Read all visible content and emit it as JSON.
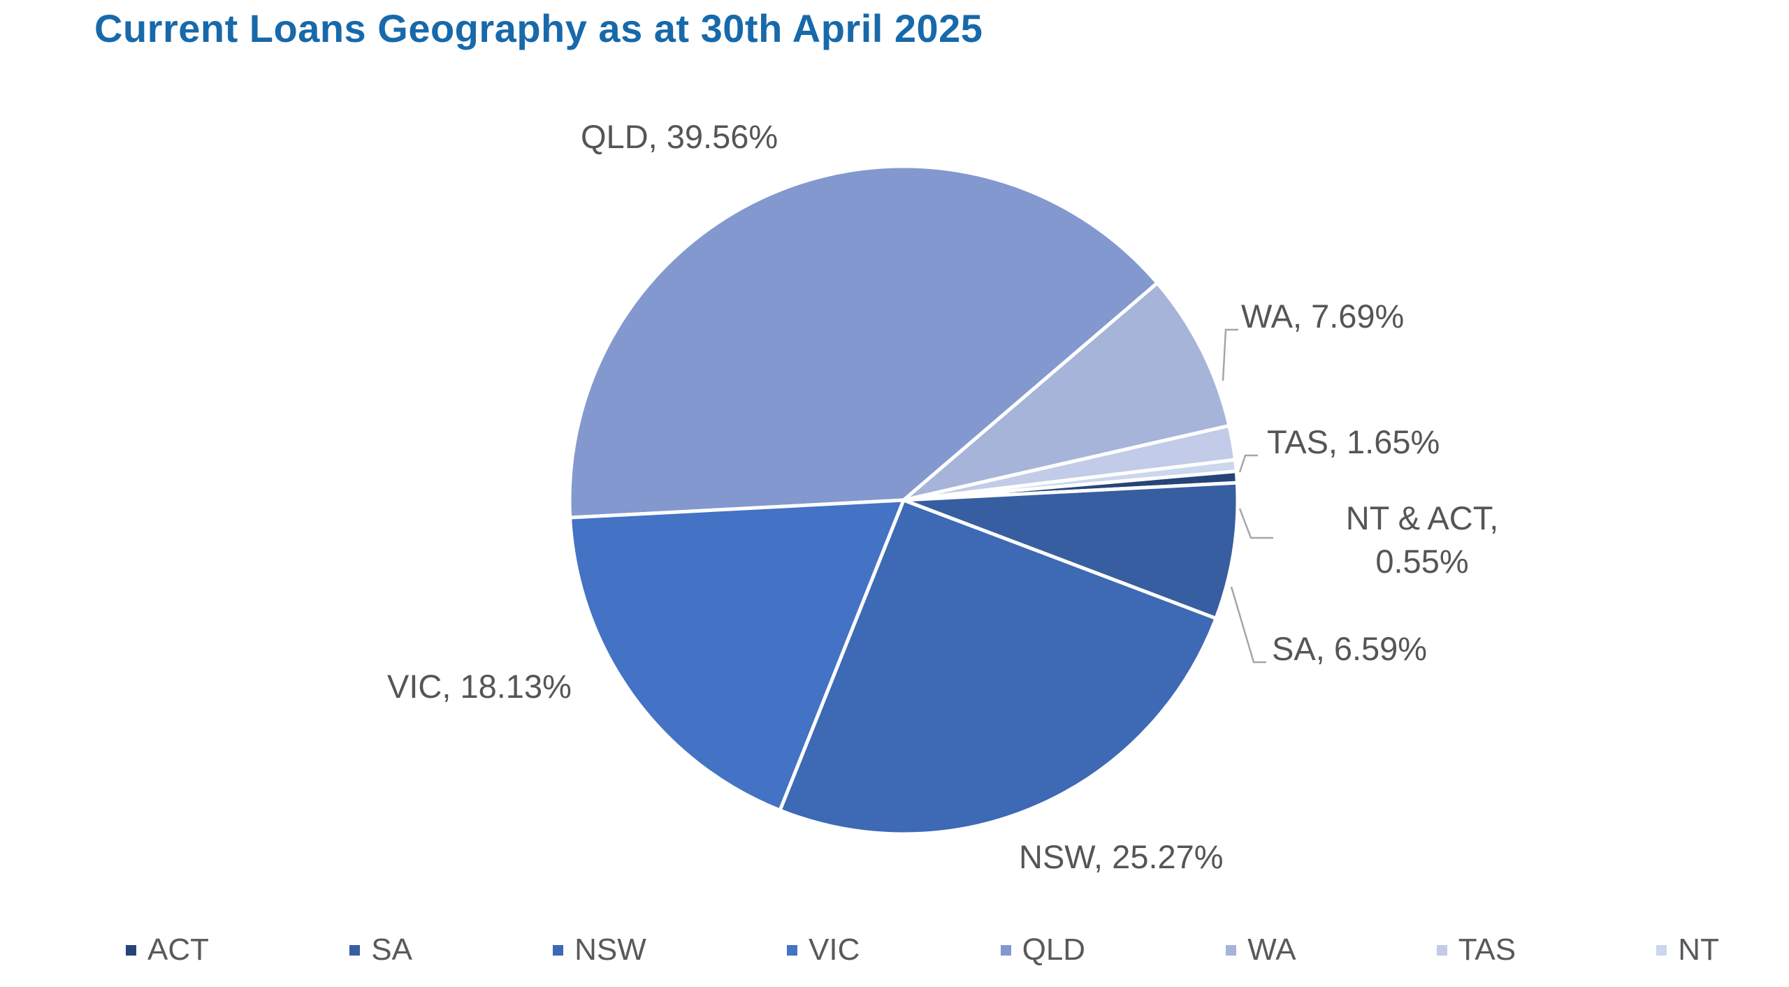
{
  "chart_data": {
    "type": "pie",
    "title": "Current Loans Geography as at 30th April 2025",
    "slices": [
      {
        "name": "QLD",
        "value": 39.56,
        "label": "QLD, 39.56%",
        "color": "#8298cf"
      },
      {
        "name": "WA",
        "value": 7.69,
        "label": "WA, 7.69%",
        "color": "#a6b4da"
      },
      {
        "name": "TAS",
        "value": 1.65,
        "label": "TAS, 1.65%",
        "color": "#c2cbe8"
      },
      {
        "name": "NT",
        "value": 0.55,
        "label": "",
        "color": "#ccd7ee"
      },
      {
        "name": "ACT",
        "value": 0.55,
        "label": "NT & ACT, 0.55%",
        "color": "#264478"
      },
      {
        "name": "SA",
        "value": 6.59,
        "label": "SA, 6.59%",
        "color": "#385ea2"
      },
      {
        "name": "NSW",
        "value": 25.27,
        "label": "NSW, 25.27%",
        "color": "#3d69b5"
      },
      {
        "name": "VIC",
        "value": 18.13,
        "label": "VIC, 18.13%",
        "color": "#4472c4"
      }
    ],
    "legend": {
      "position": "bottom",
      "entries": [
        {
          "name": "ACT",
          "color": "#264478"
        },
        {
          "name": "SA",
          "color": "#385ea2"
        },
        {
          "name": "NSW",
          "color": "#3d69b5"
        },
        {
          "name": "VIC",
          "color": "#4472c4"
        },
        {
          "name": "QLD",
          "color": "#8298cf"
        },
        {
          "name": "WA",
          "color": "#a6b4da"
        },
        {
          "name": "TAS",
          "color": "#c2cbe8"
        },
        {
          "name": "NT",
          "color": "#ccd7ee"
        }
      ]
    }
  }
}
